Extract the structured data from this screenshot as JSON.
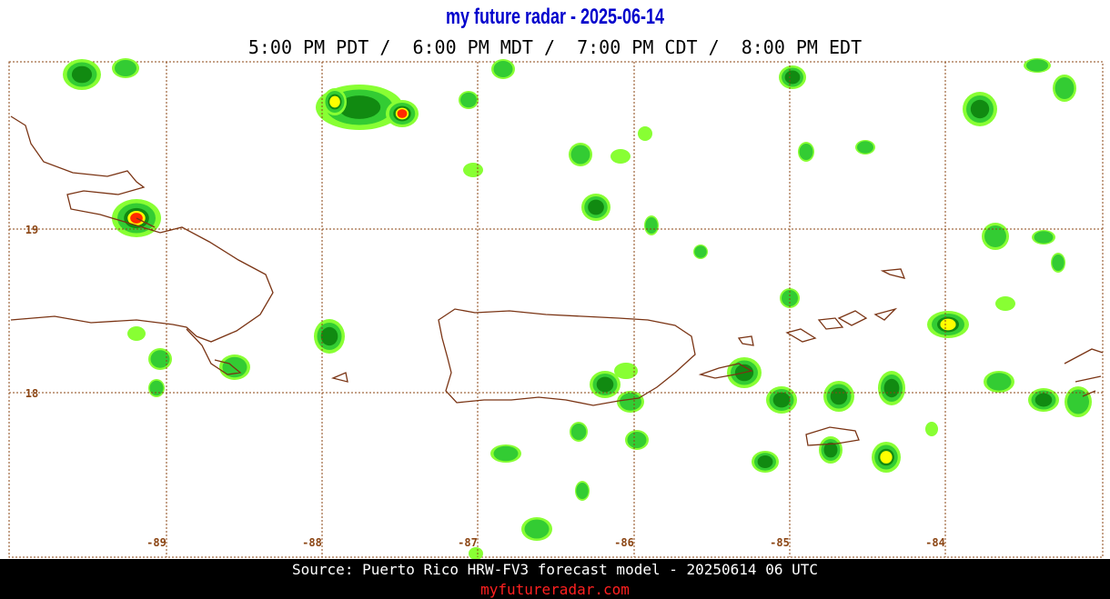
{
  "header": {
    "title": "my future radar - 2025-06-14",
    "times": "5:00 PM PDT /  6:00 PM MDT /  7:00 PM CDT /  8:00 PM EDT"
  },
  "map": {
    "longitude_labels": [
      "-89",
      "-88",
      "-87",
      "-86",
      "-85",
      "-84"
    ],
    "latitude_labels": [
      "19",
      "18"
    ]
  },
  "footer": {
    "source": "Source: Puerto Rico HRW-FV3 forecast model - 20250614 06 UTC",
    "site": "myfutureradar.com"
  }
}
